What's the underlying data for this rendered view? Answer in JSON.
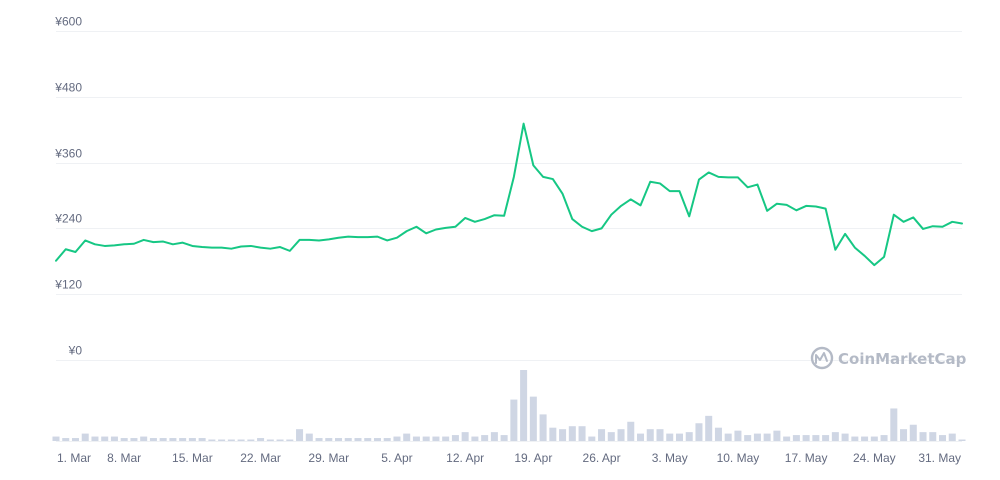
{
  "chart_data": {
    "type": "line",
    "title": "",
    "xlabel": "",
    "ylabel": "",
    "ylim": [
      0,
      600
    ],
    "y_ticks": [
      "¥0",
      "¥120",
      "¥240",
      "¥360",
      "¥480",
      "¥600"
    ],
    "x_ticks": [
      "1. Mar",
      "8. Mar",
      "15. Mar",
      "22. Mar",
      "29. Mar",
      "5. Apr",
      "12. Apr",
      "19. Apr",
      "26. Apr",
      "3. May",
      "10. May",
      "17. May",
      "24. May",
      "31. May"
    ],
    "grid": true,
    "line_color": "#16c784",
    "volume_color": "#cfd6e4",
    "watermark": "CoinMarketCap",
    "price": [
      181,
      202,
      197,
      218,
      211,
      208,
      209,
      211,
      212,
      219,
      215,
      216,
      211,
      214,
      208,
      206,
      205,
      205,
      203,
      207,
      208,
      205,
      203,
      206,
      199,
      219,
      219,
      218,
      220,
      223,
      225,
      224,
      224,
      225,
      218,
      223,
      235,
      243,
      231,
      238,
      241,
      243,
      259,
      252,
      257,
      264,
      263,
      334,
      431,
      355,
      334,
      330,
      303,
      257,
      243,
      235,
      240,
      265,
      281,
      293,
      282,
      325,
      322,
      308,
      308,
      262,
      329,
      342,
      334,
      333,
      333,
      315,
      320,
      272,
      285,
      283,
      273,
      281,
      280,
      276,
      201,
      230,
      205,
      190,
      173,
      188,
      265,
      252,
      260,
      239,
      244,
      243,
      252,
      249
    ],
    "volume": [
      3,
      2,
      2,
      5,
      3,
      3,
      3,
      2,
      2,
      3,
      2,
      2,
      2,
      2,
      2,
      2,
      1,
      1,
      1,
      1,
      1,
      2,
      1,
      1,
      1,
      8,
      5,
      2,
      2,
      2,
      2,
      2,
      2,
      2,
      2,
      3,
      5,
      3,
      3,
      3,
      3,
      4,
      6,
      3,
      4,
      6,
      4,
      28,
      48,
      30,
      18,
      9,
      8,
      10,
      10,
      3,
      8,
      6,
      8,
      13,
      5,
      8,
      8,
      5,
      5,
      6,
      12,
      17,
      9,
      5,
      7,
      4,
      5,
      5,
      7,
      3,
      4,
      4,
      4,
      4,
      6,
      5,
      3,
      3,
      3,
      4,
      22,
      8,
      11,
      6,
      6,
      4,
      5,
      1
    ]
  }
}
